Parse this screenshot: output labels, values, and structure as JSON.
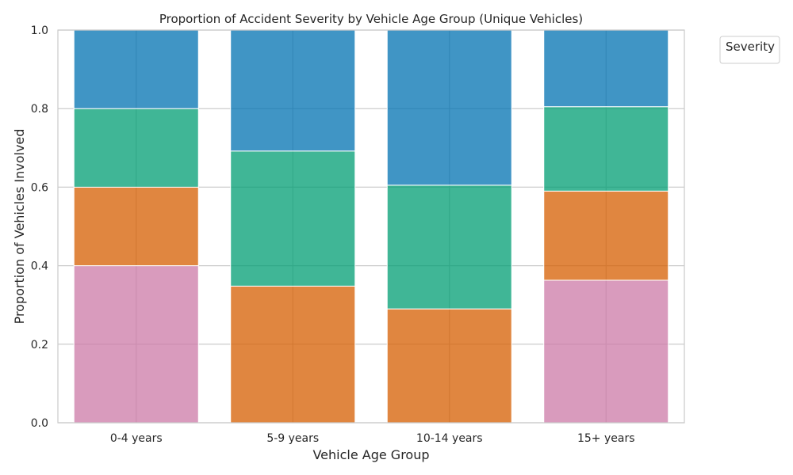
{
  "chart_data": {
    "type": "bar",
    "stacked": true,
    "title": "Proportion of Accident Severity by Vehicle Age Group (Unique Vehicles)",
    "xlabel": "Vehicle Age Group",
    "ylabel": "Proportion of Vehicles Involved",
    "categories": [
      "0-4 years",
      "5-9 years",
      "10-14 years",
      "15+ years"
    ],
    "ylim": [
      0,
      1.0
    ],
    "yticks": [
      "0.0",
      "0.2",
      "0.4",
      "0.6",
      "0.8",
      "1.0"
    ],
    "grid": true,
    "legend": {
      "title": "Severity",
      "placement": "outside top-right",
      "entries": []
    },
    "series": [
      {
        "color": "#cc79a7",
        "values": [
          0.4,
          0.0,
          0.0,
          0.363
        ]
      },
      {
        "color": "#d55e00",
        "values": [
          0.2,
          0.348,
          0.29,
          0.227
        ]
      },
      {
        "color": "#009e73",
        "values": [
          0.2,
          0.344,
          0.315,
          0.215
        ]
      },
      {
        "color": "#0072b2",
        "values": [
          0.2,
          0.308,
          0.395,
          0.195
        ]
      }
    ]
  }
}
